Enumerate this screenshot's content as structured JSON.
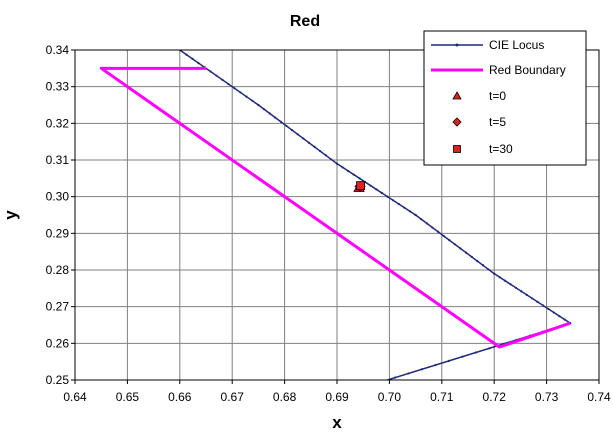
{
  "chart_data": {
    "type": "scatter",
    "title": "Red",
    "xlabel": "x",
    "ylabel": "y",
    "xlim": [
      0.64,
      0.74
    ],
    "ylim": [
      0.25,
      0.34
    ],
    "x_ticks": [
      "0.64",
      "0.65",
      "0.66",
      "0.67",
      "0.68",
      "0.69",
      "0.70",
      "0.71",
      "0.72",
      "0.73",
      "0.74"
    ],
    "y_ticks": [
      "0.25",
      "0.26",
      "0.27",
      "0.28",
      "0.29",
      "0.30",
      "0.31",
      "0.32",
      "0.33",
      "0.34"
    ],
    "grid": true,
    "legend_position": "top-right",
    "colors": {
      "locus": "#1f2a78",
      "boundary": "#ff00ff",
      "marker": "#e0201b",
      "grid": "#808080",
      "legend_border": "#000000"
    },
    "series": [
      {
        "name": "CIE Locus",
        "kind": "line-small-markers",
        "points": [
          [
            0.659,
            0.341
          ],
          [
            0.675,
            0.325
          ],
          [
            0.69,
            0.309
          ],
          [
            0.705,
            0.295
          ],
          [
            0.72,
            0.279
          ],
          [
            0.7345,
            0.2655
          ],
          [
            0.6985,
            0.2495
          ]
        ]
      },
      {
        "name": "Red Boundary",
        "kind": "thick-line",
        "points": [
          [
            0.665,
            0.335
          ],
          [
            0.645,
            0.335
          ],
          [
            0.721,
            0.259
          ],
          [
            0.7345,
            0.2655
          ]
        ]
      },
      {
        "name": "t=0",
        "kind": "marker",
        "marker": "triangle",
        "points": [
          [
            0.6942,
            0.3025
          ]
        ]
      },
      {
        "name": "t=5",
        "kind": "marker",
        "marker": "diamond",
        "points": [
          [
            0.6944,
            0.3028
          ]
        ]
      },
      {
        "name": "t=30",
        "kind": "marker",
        "marker": "square",
        "points": [
          [
            0.6945,
            0.303
          ]
        ]
      }
    ]
  }
}
